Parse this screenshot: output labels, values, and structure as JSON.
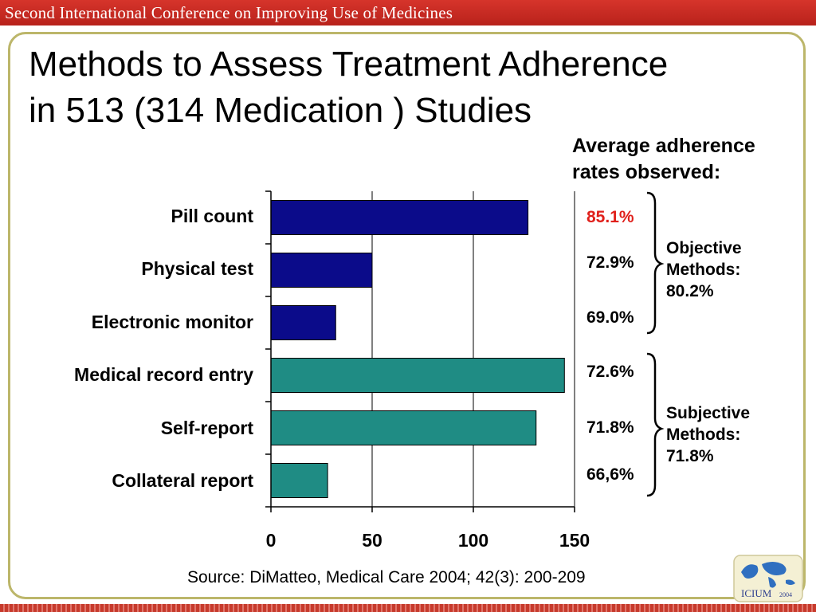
{
  "banner": {
    "text": "Second International Conference on Improving Use of Medicines"
  },
  "slide": {
    "title_line1": "Methods to Assess Treatment Adherence",
    "title_line2": "in 513 (314 Medication ) Studies",
    "adherence_heading_line1": "Average adherence",
    "adherence_heading_line2": "rates observed:",
    "source": "Source: DiMatteo, Medical Care 2004; 42(3): 200-209"
  },
  "chart_data": {
    "type": "bar",
    "orientation": "horizontal",
    "categories": [
      "Pill count",
      "Physical test",
      "Electronic monitor",
      "Medical record entry",
      "Self-report",
      "Collateral report"
    ],
    "values": [
      127,
      50,
      32,
      145,
      131,
      28
    ],
    "xlim": [
      0,
      150
    ],
    "xticks": [
      "0",
      "50",
      "100",
      "150"
    ],
    "grid": "vertical",
    "bar_colors": [
      "#0b0b8a",
      "#0b0b8a",
      "#0b0b8a",
      "#1f8c84",
      "#1f8c84",
      "#1f8c84"
    ],
    "adherence_rates": [
      "85.1%",
      "72.9%",
      "69.0%",
      "72.6%",
      "71.8%",
      "66,6%"
    ],
    "highlight_color": "#e0201b",
    "groups": [
      {
        "line1": "Objective",
        "line2": "Methods:",
        "line3": "80.2%"
      },
      {
        "line1": "Subjective",
        "line2": "Methods:",
        "line3": "71.8%"
      }
    ]
  },
  "logo": {
    "text": "ICIUM",
    "year": "2004"
  },
  "icons": [
    "globe-icon"
  ]
}
